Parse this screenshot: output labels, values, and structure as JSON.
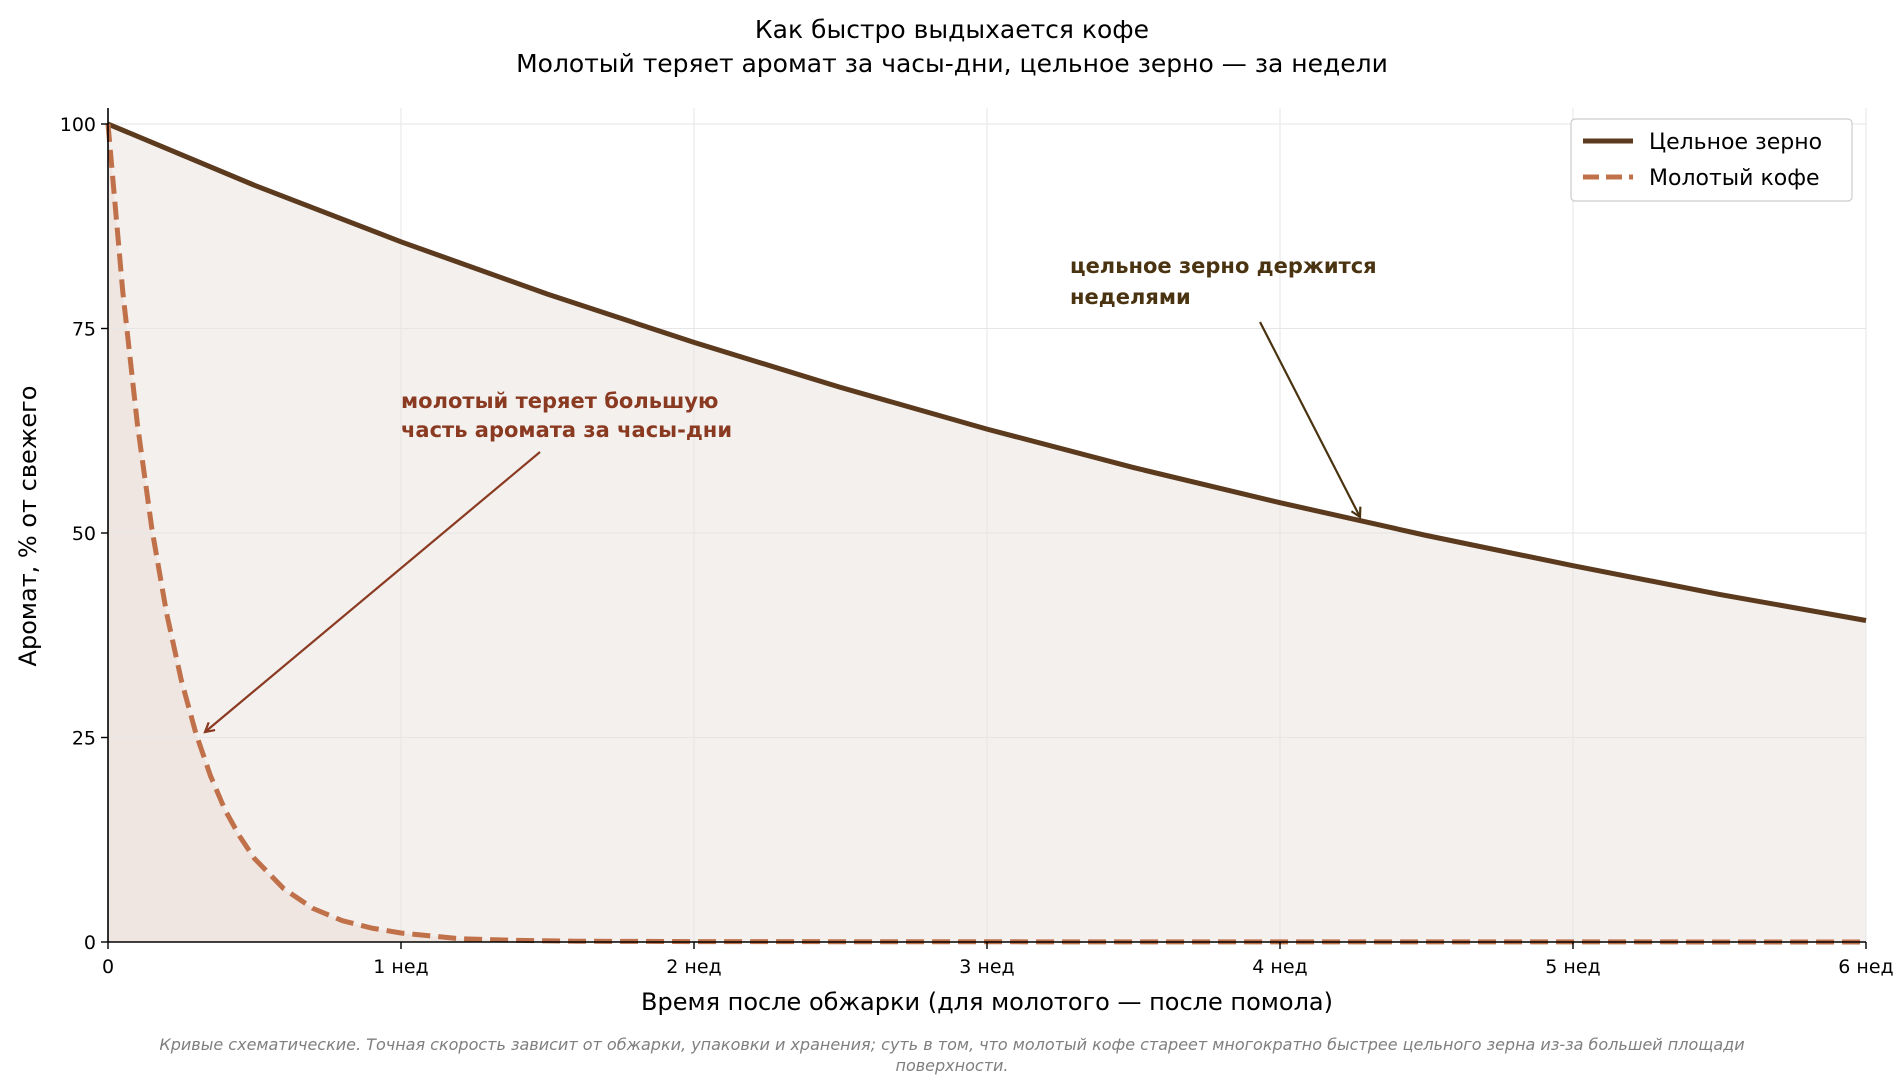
{
  "chart_data": {
    "type": "line",
    "title": "Как быстро выдыхается кофе",
    "subtitle": "Молотый теряет аромат за часы-дни, цельное зерно — за недели",
    "xlabel": "Время после обжарки (для молотого — после помола)",
    "ylabel": "Аромат, % от свежего",
    "xlim": [
      0,
      6
    ],
    "ylim": [
      0,
      100
    ],
    "x_ticks": [
      0,
      1,
      2,
      3,
      4,
      5,
      6
    ],
    "x_tick_labels": [
      "0",
      "1 нед",
      "2 нед",
      "3 нед",
      "4 нед",
      "5 нед",
      "6 нед"
    ],
    "y_ticks": [
      0,
      25,
      50,
      75,
      100
    ],
    "y_tick_labels": [
      "0",
      "25",
      "50",
      "75",
      "100"
    ],
    "grid": true,
    "legend_position": "top-right",
    "series": [
      {
        "name": "Цельное зерно",
        "style": "solid",
        "color": "#5b3a1e",
        "fill": "#f3f0ee",
        "x": [
          0,
          0.5,
          1,
          1.5,
          2,
          2.5,
          3,
          3.5,
          4,
          4.5,
          5,
          5.5,
          6
        ],
        "values": [
          100,
          92.5,
          85.6,
          79.2,
          73.3,
          67.8,
          62.7,
          58.0,
          53.7,
          49.7,
          46.0,
          42.5,
          39.3
        ]
      },
      {
        "name": "Молотый кофе",
        "style": "dashed",
        "color": "#c0714a",
        "fill": "#efe6e2",
        "x": [
          0,
          0.05,
          0.1,
          0.15,
          0.2,
          0.25,
          0.3,
          0.35,
          0.4,
          0.45,
          0.5,
          0.6,
          0.7,
          0.8,
          0.9,
          1.0,
          1.2,
          1.4,
          1.6,
          2,
          3,
          4,
          5,
          6
        ],
        "values": [
          100,
          79.6,
          63.4,
          50.5,
          40.2,
          32.0,
          25.5,
          20.3,
          16.1,
          12.9,
          10.2,
          6.5,
          4.1,
          2.6,
          1.7,
          1.1,
          0.4,
          0.2,
          0.1,
          0.05,
          0.02,
          0.01,
          0.01,
          0
        ]
      }
    ],
    "annotations": [
      {
        "text_lines": [
          "молотый теряет большую",
          "часть аромата за часы-дни"
        ],
        "color": "#8b3a22",
        "arrow_to": [
          0.33,
          25.5
        ]
      },
      {
        "text_lines": [
          "цельное зерно держится",
          "неделями"
        ],
        "color": "#4a3310",
        "arrow_to": [
          4.28,
          51.5
        ]
      }
    ],
    "footnote_lines": [
      "Кривые схематические. Точная скорость зависит от обжарки, упаковки и хранения; суть в том, что молотый кофе стареет многократно быстрее цельного зерна из-за большей площади",
      "поверхности."
    ]
  }
}
